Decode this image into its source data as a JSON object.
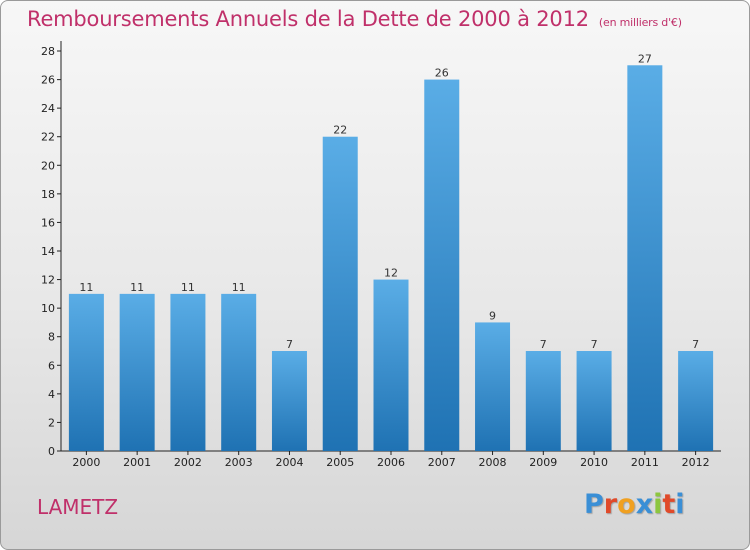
{
  "title": "Remboursements Annuels de la Dette de 2000 à 2012",
  "unit": "(en milliers d'€)",
  "location": "LAMETZ",
  "brand": {
    "letters": [
      "P",
      "r",
      "o",
      "x",
      "i",
      "t",
      "i"
    ],
    "colors": [
      "#3a8fd6",
      "#e04a2a",
      "#f0a020",
      "#3a8fd6",
      "#8dc63f",
      "#e04a2a",
      "#3a8fd6"
    ]
  },
  "colors": {
    "title": "#c0306a",
    "bar_light": "#5aade6",
    "bar_dark": "#1f72b3"
  },
  "chart_data": {
    "type": "bar",
    "categories": [
      "2000",
      "2001",
      "2002",
      "2003",
      "2004",
      "2005",
      "2006",
      "2007",
      "2008",
      "2009",
      "2010",
      "2011",
      "2012"
    ],
    "values": [
      11,
      11,
      11,
      11,
      7,
      22,
      12,
      26,
      9,
      7,
      7,
      27,
      7
    ],
    "ylim": [
      0,
      28
    ],
    "yticks": [
      0,
      2,
      4,
      6,
      8,
      10,
      12,
      14,
      16,
      18,
      20,
      22,
      24,
      26,
      28
    ],
    "grid": false,
    "data_labels": true
  }
}
